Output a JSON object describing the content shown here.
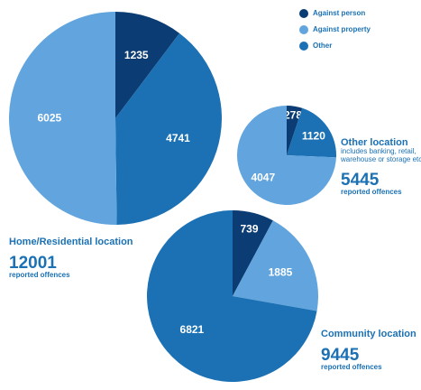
{
  "legend": [
    {
      "name": "Against person",
      "color": "#0b3c73"
    },
    {
      "name": "Against property",
      "color": "#62a5de"
    },
    {
      "name": "Other",
      "color": "#1b71b4"
    }
  ],
  "chart_data": [
    {
      "type": "pie",
      "title": "Home/Residential location",
      "total": 12001,
      "total_label": "reported offences",
      "categories": [
        "Against person",
        "Other",
        "Against property"
      ],
      "values": [
        1235,
        4741,
        6025
      ]
    },
    {
      "type": "pie",
      "title": "Other location",
      "subtitle": [
        "includes banking, retail,",
        "warehouse or storage etc"
      ],
      "total": 5445,
      "total_label": "reported offences",
      "categories": [
        "Against person",
        "Other",
        "Against property"
      ],
      "values": [
        278,
        1120,
        4047
      ]
    },
    {
      "type": "pie",
      "title": "Community location",
      "total": 9445,
      "total_label": "reported offences",
      "categories": [
        "Against person",
        "Against property",
        "Other"
      ],
      "values": [
        739,
        1885,
        6821
      ]
    }
  ]
}
